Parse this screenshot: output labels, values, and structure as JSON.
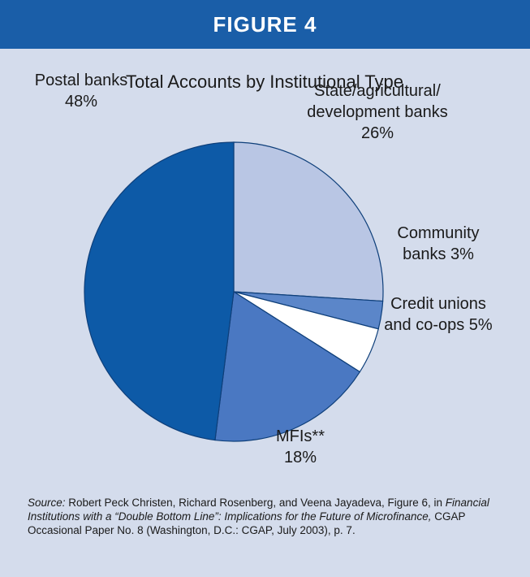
{
  "header": {
    "title": "FIGURE 4"
  },
  "chart_data": {
    "type": "pie",
    "title": "Total Accounts by Institutional Type",
    "slices": [
      {
        "label_lines": [
          "State/agricultural/",
          "development banks",
          "26%"
        ],
        "value": 26,
        "color": "#b9c6e4"
      },
      {
        "label_lines": [
          "Community",
          "banks 3%"
        ],
        "value": 3,
        "color": "#5b86c9"
      },
      {
        "label_lines": [
          "Credit unions",
          "and co-ops 5%"
        ],
        "value": 5,
        "color": "#ffffff"
      },
      {
        "label_lines": [
          "MFIs**",
          "18%"
        ],
        "value": 18,
        "color": "#4a78c2"
      },
      {
        "label_lines": [
          "Postal banks",
          "48%"
        ],
        "value": 48,
        "color": "#0d5aa7"
      }
    ]
  },
  "source": {
    "prefix": "Source:",
    "authors": " Robert Peck Christen, Richard Rosenberg, and Veena Jayadeva, Figure 6, in ",
    "work": "Financial Institutions with a “Double Bottom Line”: Implications for the Future of Microfinance,",
    "rest": " CGAP Occasional Paper No. 8 (Washington, D.C.: CGAP, July 2003), p. 7."
  }
}
